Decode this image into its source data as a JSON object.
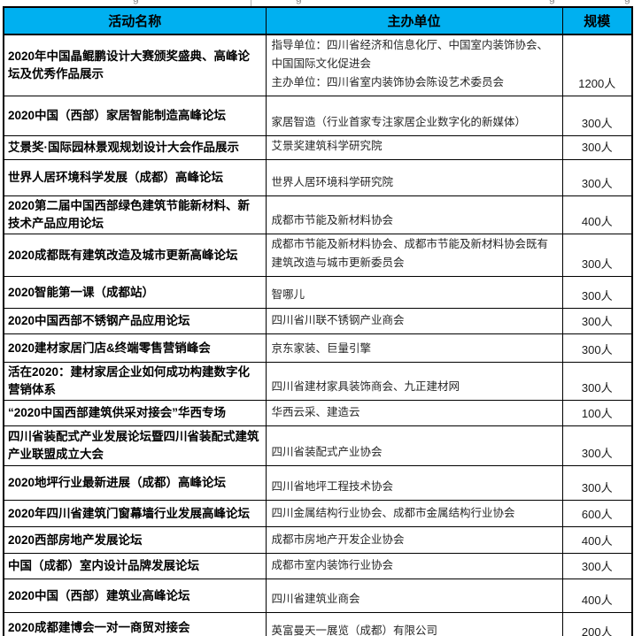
{
  "colors": {
    "header_bg": "#00B0F0",
    "border": "#000000",
    "header_text": "#000000",
    "body_text": "#262626"
  },
  "header": {
    "activity": "活动名称",
    "organizer": "主办单位",
    "scale": "规模"
  },
  "top_fragments": [
    "g",
    "g",
    "g",
    "g"
  ],
  "rows": [
    {
      "activity": "2020年中国晶鲲鹏设计大赛颁奖盛典、高峰论坛及优秀作品展示",
      "organizer": "指导单位：四川省经济和信息化厅、中国室内装饰协会、中国国际文化促进会\n主办单位：四川省室内装饰协会陈设艺术委员会",
      "scale": "1200人"
    },
    {
      "activity": "2020中国（西部）家居智能制造高峰论坛",
      "organizer": "家居智造（行业首家专注家居企业数字化的新媒体）",
      "scale": "300人"
    },
    {
      "activity": "艾景奖·国际园林景观规划设计大会作品展示",
      "organizer": "艾景奖建筑科学研究院",
      "scale": "300人"
    },
    {
      "activity": "世界人居环境科学发展（成都）高峰论坛",
      "organizer": "世界人居环境科学研究院",
      "scale": "300人"
    },
    {
      "activity": "2020第二届中国西部绿色建筑节能新材料、新技术产品应用论坛",
      "organizer": "成都市节能及新材料协会",
      "scale": "400人"
    },
    {
      "activity": "2020成都既有建筑改造及城市更新高峰论坛",
      "organizer": "成都市节能及新材料协会、成都市节能及新材料协会既有建筑改造与城市更新委员会",
      "scale": "300人"
    },
    {
      "activity": "2020智能第一课（成都站）",
      "organizer": "智哪儿",
      "scale": "300人"
    },
    {
      "activity": "2020中国西部不锈钢产品应用论坛",
      "organizer": "四川省川联不锈钢产业商会",
      "scale": "300人"
    },
    {
      "activity": "2020建材家居门店&终端零售营销峰会",
      "organizer": "京东家装、巨量引擎",
      "scale": "300人"
    },
    {
      "activity": "活在2020：建材家居企业如何成功构建数字化营销体系",
      "organizer": "四川省建材家具装饰商会、九正建材网",
      "scale": "300人"
    },
    {
      "activity": "“2020中国西部建筑供采对接会”华西专场",
      "organizer": "华西云采、建造云",
      "scale": "100人"
    },
    {
      "activity": "四川省装配式产业发展论坛暨四川省装配式建筑产业联盟成立大会",
      "organizer": "四川省装配式产业协会",
      "scale": "300人"
    },
    {
      "activity": "2020地坪行业最新进展（成都）高峰论坛",
      "organizer": "四川省地坪工程技术协会",
      "scale": "300人"
    },
    {
      "activity": "2020年四川省建筑门窗幕墙行业发展高峰论坛",
      "organizer": "四川金属结构行业协会、成都市金属结构行业协会",
      "scale": "600人"
    },
    {
      "activity": "2020西部房地产发展论坛",
      "organizer": "成都市房地产开发企业协会",
      "scale": "400人"
    },
    {
      "activity": "中国（成都）室内设计品牌发展论坛",
      "organizer": "成都市室内装饰行业协会",
      "scale": "300人"
    },
    {
      "activity": "2020中国（西部）建筑业高峰论坛",
      "organizer": "四川省建筑业商会",
      "scale": "400人"
    },
    {
      "activity": "2020成都建博会一对一商贸对接会",
      "organizer": "英富曼天一展览（成都）有限公司",
      "scale": "200人"
    }
  ]
}
